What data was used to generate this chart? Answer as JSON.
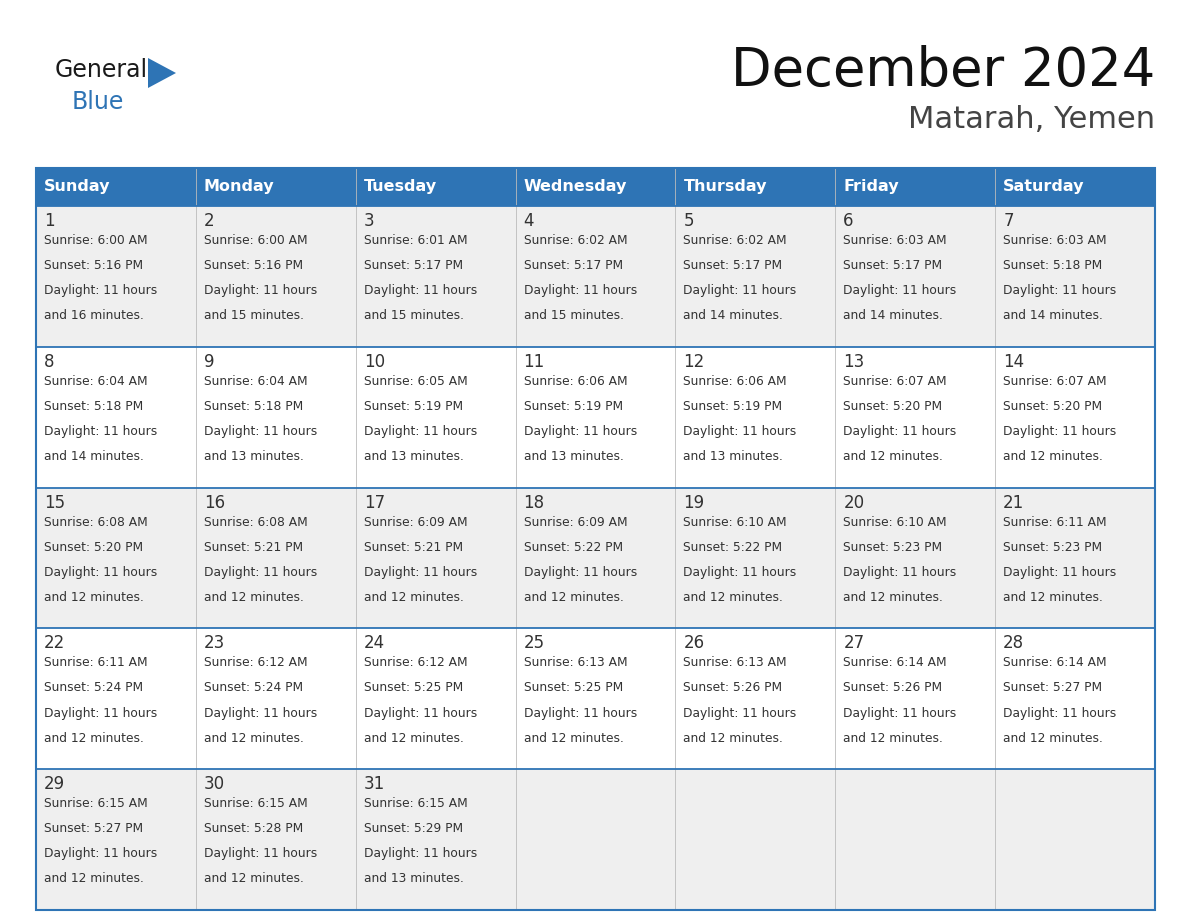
{
  "title": "December 2024",
  "subtitle": "Matarah, Yemen",
  "days_of_week": [
    "Sunday",
    "Monday",
    "Tuesday",
    "Wednesday",
    "Thursday",
    "Friday",
    "Saturday"
  ],
  "header_bg": "#2E74B5",
  "header_text": "#FFFFFF",
  "row_bg_colors": [
    "#EFEFEF",
    "#FFFFFF",
    "#EFEFEF",
    "#FFFFFF",
    "#EFEFEF"
  ],
  "border_color": "#2E74B5",
  "text_color": "#333333",
  "logo_general_color": "#1A1A1A",
  "logo_blue_color": "#2E74B5",
  "weeks": [
    {
      "days": [
        {
          "day": 1,
          "sunrise": "6:00 AM",
          "sunset": "5:16 PM",
          "daylight_hours": 11,
          "daylight_minutes": 16
        },
        {
          "day": 2,
          "sunrise": "6:00 AM",
          "sunset": "5:16 PM",
          "daylight_hours": 11,
          "daylight_minutes": 15
        },
        {
          "day": 3,
          "sunrise": "6:01 AM",
          "sunset": "5:17 PM",
          "daylight_hours": 11,
          "daylight_minutes": 15
        },
        {
          "day": 4,
          "sunrise": "6:02 AM",
          "sunset": "5:17 PM",
          "daylight_hours": 11,
          "daylight_minutes": 15
        },
        {
          "day": 5,
          "sunrise": "6:02 AM",
          "sunset": "5:17 PM",
          "daylight_hours": 11,
          "daylight_minutes": 14
        },
        {
          "day": 6,
          "sunrise": "6:03 AM",
          "sunset": "5:17 PM",
          "daylight_hours": 11,
          "daylight_minutes": 14
        },
        {
          "day": 7,
          "sunrise": "6:03 AM",
          "sunset": "5:18 PM",
          "daylight_hours": 11,
          "daylight_minutes": 14
        }
      ]
    },
    {
      "days": [
        {
          "day": 8,
          "sunrise": "6:04 AM",
          "sunset": "5:18 PM",
          "daylight_hours": 11,
          "daylight_minutes": 14
        },
        {
          "day": 9,
          "sunrise": "6:04 AM",
          "sunset": "5:18 PM",
          "daylight_hours": 11,
          "daylight_minutes": 13
        },
        {
          "day": 10,
          "sunrise": "6:05 AM",
          "sunset": "5:19 PM",
          "daylight_hours": 11,
          "daylight_minutes": 13
        },
        {
          "day": 11,
          "sunrise": "6:06 AM",
          "sunset": "5:19 PM",
          "daylight_hours": 11,
          "daylight_minutes": 13
        },
        {
          "day": 12,
          "sunrise": "6:06 AM",
          "sunset": "5:19 PM",
          "daylight_hours": 11,
          "daylight_minutes": 13
        },
        {
          "day": 13,
          "sunrise": "6:07 AM",
          "sunset": "5:20 PM",
          "daylight_hours": 11,
          "daylight_minutes": 12
        },
        {
          "day": 14,
          "sunrise": "6:07 AM",
          "sunset": "5:20 PM",
          "daylight_hours": 11,
          "daylight_minutes": 12
        }
      ]
    },
    {
      "days": [
        {
          "day": 15,
          "sunrise": "6:08 AM",
          "sunset": "5:20 PM",
          "daylight_hours": 11,
          "daylight_minutes": 12
        },
        {
          "day": 16,
          "sunrise": "6:08 AM",
          "sunset": "5:21 PM",
          "daylight_hours": 11,
          "daylight_minutes": 12
        },
        {
          "day": 17,
          "sunrise": "6:09 AM",
          "sunset": "5:21 PM",
          "daylight_hours": 11,
          "daylight_minutes": 12
        },
        {
          "day": 18,
          "sunrise": "6:09 AM",
          "sunset": "5:22 PM",
          "daylight_hours": 11,
          "daylight_minutes": 12
        },
        {
          "day": 19,
          "sunrise": "6:10 AM",
          "sunset": "5:22 PM",
          "daylight_hours": 11,
          "daylight_minutes": 12
        },
        {
          "day": 20,
          "sunrise": "6:10 AM",
          "sunset": "5:23 PM",
          "daylight_hours": 11,
          "daylight_minutes": 12
        },
        {
          "day": 21,
          "sunrise": "6:11 AM",
          "sunset": "5:23 PM",
          "daylight_hours": 11,
          "daylight_minutes": 12
        }
      ]
    },
    {
      "days": [
        {
          "day": 22,
          "sunrise": "6:11 AM",
          "sunset": "5:24 PM",
          "daylight_hours": 11,
          "daylight_minutes": 12
        },
        {
          "day": 23,
          "sunrise": "6:12 AM",
          "sunset": "5:24 PM",
          "daylight_hours": 11,
          "daylight_minutes": 12
        },
        {
          "day": 24,
          "sunrise": "6:12 AM",
          "sunset": "5:25 PM",
          "daylight_hours": 11,
          "daylight_minutes": 12
        },
        {
          "day": 25,
          "sunrise": "6:13 AM",
          "sunset": "5:25 PM",
          "daylight_hours": 11,
          "daylight_minutes": 12
        },
        {
          "day": 26,
          "sunrise": "6:13 AM",
          "sunset": "5:26 PM",
          "daylight_hours": 11,
          "daylight_minutes": 12
        },
        {
          "day": 27,
          "sunrise": "6:14 AM",
          "sunset": "5:26 PM",
          "daylight_hours": 11,
          "daylight_minutes": 12
        },
        {
          "day": 28,
          "sunrise": "6:14 AM",
          "sunset": "5:27 PM",
          "daylight_hours": 11,
          "daylight_minutes": 12
        }
      ]
    },
    {
      "days": [
        {
          "day": 29,
          "sunrise": "6:15 AM",
          "sunset": "5:27 PM",
          "daylight_hours": 11,
          "daylight_minutes": 12
        },
        {
          "day": 30,
          "sunrise": "6:15 AM",
          "sunset": "5:28 PM",
          "daylight_hours": 11,
          "daylight_minutes": 12
        },
        {
          "day": 31,
          "sunrise": "6:15 AM",
          "sunset": "5:29 PM",
          "daylight_hours": 11,
          "daylight_minutes": 13
        },
        null,
        null,
        null,
        null
      ]
    }
  ],
  "num_weeks": 5
}
